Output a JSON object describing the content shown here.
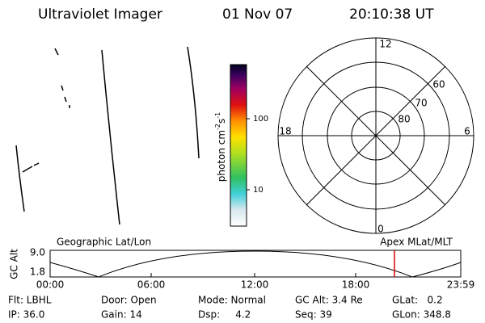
{
  "header": {
    "title": "Ultraviolet Imager",
    "date": "01 Nov 07",
    "time": "20:10:38 UT"
  },
  "colorbar": {
    "unit": "photon cm",
    "unit_exp1": "-2",
    "unit_s": "s",
    "unit_exp2": "-1",
    "ticks": [
      "100",
      "10"
    ]
  },
  "polar": {
    "mlt_labels": [
      "12",
      "6",
      "18",
      "0"
    ],
    "lat_labels": [
      "60",
      "70",
      "80"
    ]
  },
  "orbit": {
    "left_title": "Geographic Lat/Lon",
    "right_title": "Apex MLat/MLT",
    "ylabel": "GC Alt",
    "yticks": [
      "9.0",
      "1.8"
    ],
    "xticks": [
      "00:00",
      "06:00",
      "12:00",
      "18:00",
      "23:59"
    ]
  },
  "status": [
    [
      "Flt: LBHL",
      "Door: Open",
      "Mode: Normal",
      "GC Alt: 3.4 Re",
      "GLat:   0.2"
    ],
    [
      "IP: 36.0",
      "Gain: 14",
      "Dsp:     4.2",
      "Seq: 39",
      "GLon: 348.8"
    ]
  ]
}
